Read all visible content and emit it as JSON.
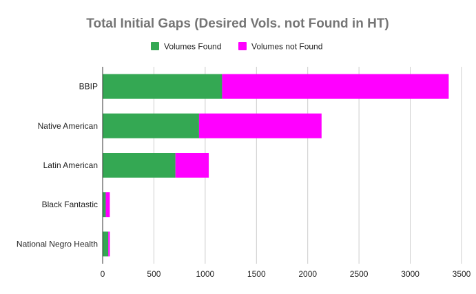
{
  "chart_data": {
    "type": "bar",
    "orientation": "horizontal",
    "stacked": true,
    "title": "Total Initial Gaps (Desired Vols. not Found in HT)",
    "categories": [
      "BBIP",
      "Native American",
      "Latin American",
      "Black Fantastic",
      "National Negro Health"
    ],
    "series": [
      {
        "name": "Volumes Found",
        "color": "#34a853",
        "values": [
          1165,
          940,
          710,
          30,
          55
        ]
      },
      {
        "name": "Volumes not Found",
        "color": "#ff00ff",
        "values": [
          2210,
          1195,
          325,
          40,
          15
        ]
      }
    ],
    "xlabel": "",
    "ylabel": "",
    "xlim": [
      0,
      3500
    ],
    "xticks": [
      "0",
      "500",
      "1000",
      "1500",
      "2000",
      "2500",
      "3000",
      "3500"
    ],
    "legend_position": "top",
    "grid": true
  }
}
